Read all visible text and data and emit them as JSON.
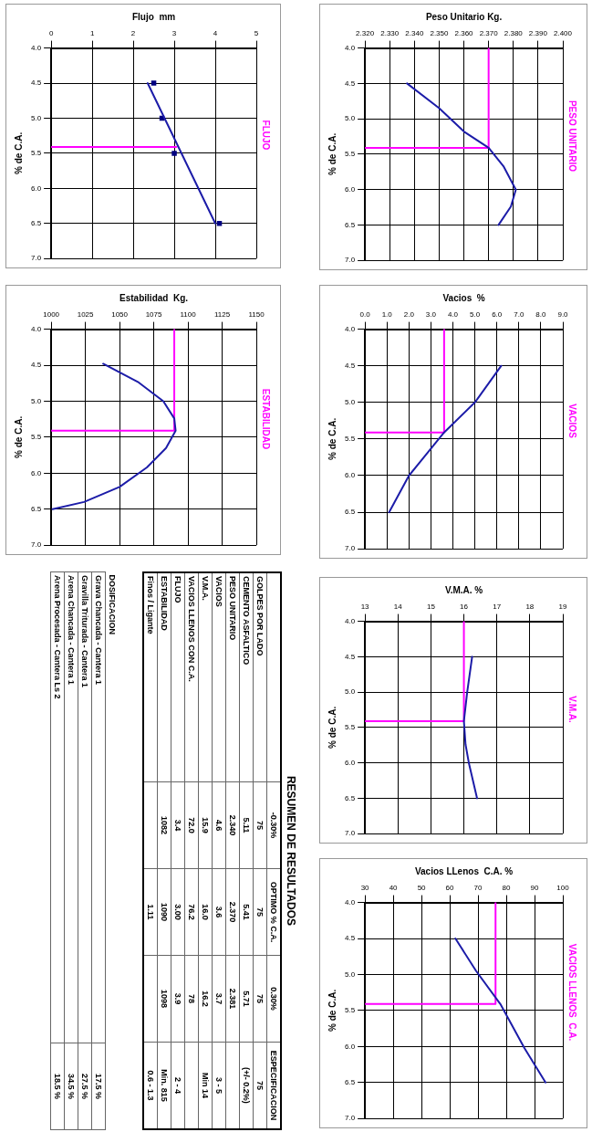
{
  "chart_data": [
    {
      "type": "line",
      "title": "FLUJO",
      "xlabel": "Flujo  mm",
      "ylabel": "% de C.A.",
      "xlim": [
        0,
        5
      ],
      "xticks": [
        0,
        1,
        2,
        3,
        4,
        5
      ],
      "ylim": [
        7.0,
        4.0
      ],
      "yticks": [
        {
          "value": 4,
          "label": "4.0"
        },
        {
          "value": 4.5,
          "label": "4.5"
        },
        {
          "value": 5,
          "label": "5.0"
        },
        {
          "value": 5.5,
          "label": "5.5"
        },
        {
          "value": 6,
          "label": "6.0"
        },
        {
          "value": 6.5,
          "label": "6.5"
        },
        {
          "value": 7,
          "label": "7.0"
        }
      ],
      "grid": true,
      "series": [
        {
          "color": "#1c1ca8",
          "x": [
            2.35,
            4.0
          ],
          "values": [
            4.5,
            6.5
          ]
        },
        {
          "type": "scatter",
          "marker": "square",
          "color": "#000080",
          "x": [
            2.5,
            2.7,
            3.0,
            4.1
          ],
          "values": [
            4.5,
            5.0,
            5.5,
            6.5
          ]
        },
        {
          "color": "#ff00ff",
          "x": [
            0,
            3.05
          ],
          "values": [
            5.41,
            5.41
          ]
        }
      ]
    },
    {
      "type": "line",
      "title": "PESO UNITARIO",
      "xlabel": "Peso Unitario Kg.",
      "ylabel": "% de C.A.",
      "xlim": [
        2.32,
        2.4
      ],
      "xticks": [
        {
          "value": 2.32,
          "label": "2.320"
        },
        {
          "value": 2.33,
          "label": "2.330"
        },
        {
          "value": 2.34,
          "label": "2.340"
        },
        {
          "value": 2.35,
          "label": "2.350"
        },
        {
          "value": 2.36,
          "label": "2.360"
        },
        {
          "value": 2.37,
          "label": "2.370"
        },
        {
          "value": 2.38,
          "label": "2.380"
        },
        {
          "value": 2.39,
          "label": "2.390"
        },
        {
          "value": 2.4,
          "label": "2.400"
        }
      ],
      "ylim": [
        7.0,
        4.0
      ],
      "yticks": [
        {
          "value": 4,
          "label": "4.0"
        },
        {
          "value": 4.5,
          "label": "4.5"
        },
        {
          "value": 5,
          "label": "5.0"
        },
        {
          "value": 5.5,
          "label": "5.5"
        },
        {
          "value": 6,
          "label": "6.0"
        },
        {
          "value": 6.5,
          "label": "6.5"
        },
        {
          "value": 7,
          "label": "7.0"
        }
      ],
      "grid": true,
      "series": [
        {
          "color": "#1c1ca8",
          "x": [
            2.337,
            2.35,
            2.36,
            2.37,
            2.376,
            2.381,
            2.379,
            2.374
          ],
          "values": [
            4.5,
            4.85,
            5.18,
            5.41,
            5.67,
            6.0,
            6.24,
            6.5
          ]
        },
        {
          "color": "#ff00ff",
          "x": [
            2.32,
            2.37,
            2.37
          ],
          "values": [
            5.41,
            5.41,
            4.0
          ]
        }
      ]
    },
    {
      "type": "line",
      "title": "ESTABILIDAD",
      "xlabel": "Estabilidad  Kg.",
      "ylabel": "% de C.A.",
      "xlim": [
        1000,
        1150
      ],
      "xticks": [
        1000,
        1025,
        1050,
        1075,
        1100,
        1125,
        1150
      ],
      "ylim": [
        7.0,
        4.0
      ],
      "yticks": [
        {
          "value": 4,
          "label": "4.0"
        },
        {
          "value": 4.5,
          "label": "4.5"
        },
        {
          "value": 5,
          "label": "5.0"
        },
        {
          "value": 5.5,
          "label": "5.5"
        },
        {
          "value": 6,
          "label": "6.0"
        },
        {
          "value": 6.5,
          "label": "6.5"
        },
        {
          "value": 7,
          "label": "7.0"
        }
      ],
      "grid": true,
      "series": [
        {
          "color": "#1c1ca8",
          "x": [
            1038,
            1064,
            1082,
            1090,
            1091,
            1084,
            1070,
            1050,
            1024,
            1001
          ],
          "values": [
            4.48,
            4.74,
            5.0,
            5.24,
            5.41,
            5.65,
            5.92,
            6.19,
            6.4,
            6.5
          ]
        },
        {
          "color": "#ff00ff",
          "x": [
            1000,
            1090,
            1090
          ],
          "values": [
            5.41,
            5.41,
            4.0
          ]
        }
      ]
    },
    {
      "type": "line",
      "title": "VACIOS",
      "xlabel": "Vacios  %",
      "ylabel": "% de C.A.",
      "xlim": [
        0,
        9
      ],
      "xticks": [
        {
          "value": 0,
          "label": "0.0"
        },
        {
          "value": 1,
          "label": "1.0"
        },
        {
          "value": 2,
          "label": "2.0"
        },
        {
          "value": 3,
          "label": "3.0"
        },
        {
          "value": 4,
          "label": "4.0"
        },
        {
          "value": 5,
          "label": "5.0"
        },
        {
          "value": 6,
          "label": "6.0"
        },
        {
          "value": 7,
          "label": "7.0"
        },
        {
          "value": 8,
          "label": "8.0"
        },
        {
          "value": 9,
          "label": "9.0"
        }
      ],
      "ylim": [
        7.0,
        4.0
      ],
      "yticks": [
        {
          "value": 4,
          "label": "4.0"
        },
        {
          "value": 4.5,
          "label": "4.5"
        },
        {
          "value": 5,
          "label": "5.0"
        },
        {
          "value": 5.5,
          "label": "5.5"
        },
        {
          "value": 6,
          "label": "6.0"
        },
        {
          "value": 6.5,
          "label": "6.5"
        },
        {
          "value": 7,
          "label": "7.0"
        }
      ],
      "grid": true,
      "series": [
        {
          "color": "#1c1ca8",
          "x": [
            6.2,
            5.0,
            3.6,
            2.0,
            1.1
          ],
          "values": [
            4.5,
            5.0,
            5.41,
            6.0,
            6.5
          ]
        },
        {
          "color": "#ff00ff",
          "x": [
            0,
            3.6,
            3.6
          ],
          "values": [
            5.41,
            5.41,
            4.0
          ]
        }
      ]
    },
    {
      "type": "other",
      "title": "RESUMEN DE RESULTADOS",
      "categories": [
        "-0.30%",
        "OPTIMO % C.A.",
        "0.30%",
        "ESPECIFICACION"
      ],
      "y_categories": [
        "GOLPES POR LADO",
        "CEMENTO ASFALTICO",
        "PESO UNITARIO",
        "VACIOS",
        "V.M.A.",
        "VACIOS LLENOS CON C.A.",
        "FLUJO",
        "ESTABILIDAD",
        "Finos / Ligante"
      ],
      "cell_labels": [
        [
          "75",
          "75",
          "75",
          "75"
        ],
        [
          "5.11",
          "5.41",
          "5.71",
          "(+/- 0.2%)"
        ],
        [
          "2.340",
          "2.370",
          "2.381",
          null
        ],
        [
          "4.6",
          "3.6",
          "3.7",
          "3 - 5"
        ],
        [
          "15.9",
          "16.0",
          "16.2",
          "Min 14"
        ],
        [
          "72.0",
          "76.2",
          "78",
          null
        ],
        [
          "3.4",
          "3.00",
          "3.9",
          "2 - 4"
        ],
        [
          "1082",
          "1090",
          "1098",
          "Min. 815"
        ],
        [
          null,
          "1.11",
          null,
          "0.6 - 1.3"
        ]
      ]
    },
    {
      "type": "other",
      "title": "DOSIFICACION",
      "y_categories": [
        "Grava Chancada - Cantera 1",
        "Gravilla Triturada - Cantera 1",
        "Arena Chancada - Cantera 1",
        "Arena Procesada - Cantera Ls 2"
      ],
      "cell_labels": [
        [
          "17.5 %"
        ],
        [
          "27.5 %"
        ],
        [
          "34.5 %"
        ],
        [
          "18.5 %"
        ]
      ]
    },
    {
      "type": "line",
      "title": "V.M.A.",
      "xlabel": "V.M.A. %",
      "ylabel": "% de C.A.",
      "xlim": [
        13,
        19
      ],
      "xticks": [
        13,
        14,
        15,
        16,
        17,
        18,
        19
      ],
      "ylim": [
        7.0,
        4.0
      ],
      "yticks": [
        {
          "value": 4,
          "label": "4.0"
        },
        {
          "value": 4.5,
          "label": "4.5"
        },
        {
          "value": 5,
          "label": "5.0"
        },
        {
          "value": 5.5,
          "label": "5.5"
        },
        {
          "value": 6,
          "label": "6.0"
        },
        {
          "value": 6.5,
          "label": "6.5"
        },
        {
          "value": 7,
          "label": "7.0"
        }
      ],
      "grid": true,
      "series": [
        {
          "color": "#1c1ca8",
          "x": [
            16.25,
            16.1,
            16.0,
            16.05,
            16.15,
            16.4
          ],
          "values": [
            4.5,
            5.0,
            5.41,
            5.74,
            6.0,
            6.5
          ]
        },
        {
          "color": "#ff00ff",
          "x": [
            13,
            16.0,
            16.0
          ],
          "values": [
            5.41,
            5.41,
            4.0
          ]
        }
      ]
    },
    {
      "type": "line",
      "title": "VACIOS LLENOS  C.A.",
      "xlabel": "Vacios LLenos  C.A. %",
      "ylabel": "% de C.A.",
      "xlim": [
        30,
        100
      ],
      "xticks": [
        30,
        40,
        50,
        60,
        70,
        80,
        90,
        100
      ],
      "ylim": [
        7.0,
        4.0
      ],
      "yticks": [
        {
          "value": 4,
          "label": "4.0"
        },
        {
          "value": 4.5,
          "label": "4.5"
        },
        {
          "value": 5,
          "label": "5.0"
        },
        {
          "value": 5.5,
          "label": "5.5"
        },
        {
          "value": 6,
          "label": "6.0"
        },
        {
          "value": 6.5,
          "label": "6.5"
        },
        {
          "value": 7,
          "label": "7.0"
        }
      ],
      "grid": true,
      "series": [
        {
          "color": "#1c1ca8",
          "x": [
            62.0,
            69.3,
            77.9,
            86.4,
            93.9
          ],
          "values": [
            4.5,
            4.95,
            5.41,
            6.02,
            6.5
          ]
        },
        {
          "color": "#ff00ff",
          "x": [
            30,
            76.2,
            76.2
          ],
          "values": [
            5.41,
            5.41,
            4.0
          ]
        }
      ]
    }
  ]
}
